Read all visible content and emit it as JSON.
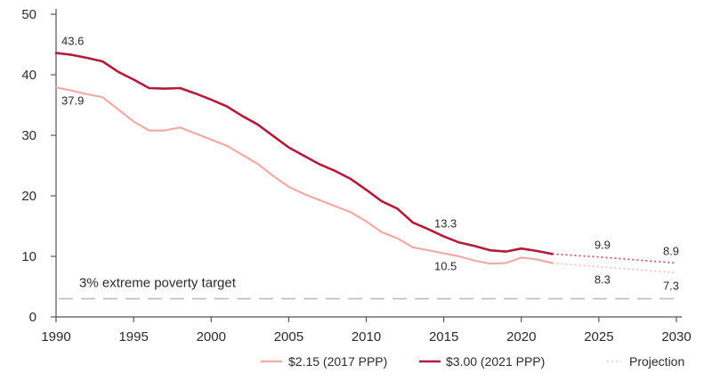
{
  "chart_data": {
    "type": "line",
    "x_ticks": [
      1990,
      1995,
      2000,
      2005,
      2010,
      2015,
      2020,
      2025,
      2030
    ],
    "y_ticks": [
      0,
      10,
      20,
      30,
      40,
      50
    ],
    "xlim": [
      1990,
      2030
    ],
    "ylim": [
      0,
      50
    ],
    "grid": false,
    "legend_position": "bottom-right",
    "colors": {
      "series_215": "#f3aaa5",
      "series_300": "#b31b3a",
      "projection": "#d8d8d8",
      "target": "#bdbdbd",
      "axis": "#555555"
    },
    "series": [
      {
        "name": "$2.15 (2017 PPP)",
        "x": [
          1990,
          1991,
          1992,
          1993,
          1994,
          1995,
          1996,
          1997,
          1998,
          1999,
          2000,
          2001,
          2002,
          2003,
          2004,
          2005,
          2006,
          2007,
          2008,
          2009,
          2010,
          2011,
          2012,
          2013,
          2014,
          2015,
          2016,
          2017,
          2018,
          2019,
          2020,
          2021,
          2022
        ],
        "values": [
          37.9,
          37.4,
          36.8,
          36.3,
          34.3,
          32.3,
          30.8,
          30.8,
          31.3,
          30.3,
          29.3,
          28.3,
          26.8,
          25.3,
          23.3,
          21.5,
          20.3,
          19.3,
          18.3,
          17.3,
          15.8,
          14.0,
          13.0,
          11.5,
          11.0,
          10.5,
          10.0,
          9.3,
          8.8,
          8.9,
          9.8,
          9.5,
          8.9
        ],
        "projection": {
          "x": [
            2022,
            2025,
            2030
          ],
          "values": [
            8.9,
            8.3,
            7.3
          ]
        }
      },
      {
        "name": "$3.00 (2021 PPP)",
        "x": [
          1990,
          1991,
          1992,
          1993,
          1994,
          1995,
          1996,
          1997,
          1998,
          1999,
          2000,
          2001,
          2002,
          2003,
          2004,
          2005,
          2006,
          2007,
          2008,
          2009,
          2010,
          2011,
          2012,
          2013,
          2014,
          2015,
          2016,
          2017,
          2018,
          2019,
          2020,
          2021,
          2022
        ],
        "values": [
          43.6,
          43.3,
          42.8,
          42.2,
          40.5,
          39.2,
          37.8,
          37.7,
          37.8,
          36.9,
          35.9,
          34.8,
          33.2,
          31.8,
          29.9,
          28.0,
          26.6,
          25.2,
          24.1,
          22.8,
          21.0,
          19.1,
          17.9,
          15.6,
          14.5,
          13.3,
          12.3,
          11.7,
          11.0,
          10.8,
          11.3,
          10.9,
          10.4
        ],
        "projection": {
          "x": [
            2022,
            2025,
            2030
          ],
          "values": [
            10.4,
            9.9,
            8.9
          ]
        }
      }
    ],
    "target": {
      "value": 3,
      "label": "3% extreme poverty target"
    },
    "data_labels": [
      {
        "text": "43.6",
        "x": 1990,
        "y": 43.6,
        "series": 1
      },
      {
        "text": "37.9",
        "x": 1990,
        "y": 37.9,
        "series": 0
      },
      {
        "text": "13.3",
        "x": 2015,
        "y": 13.3,
        "series": 1
      },
      {
        "text": "10.5",
        "x": 2015,
        "y": 10.5,
        "series": 0
      },
      {
        "text": "9.9",
        "x": 2025,
        "y": 9.9,
        "series": 1
      },
      {
        "text": "8.3",
        "x": 2025,
        "y": 8.3,
        "series": 0
      },
      {
        "text": "8.9",
        "x": 2030,
        "y": 8.9,
        "series": 1
      },
      {
        "text": "7.3",
        "x": 2030,
        "y": 7.3,
        "series": 0
      }
    ],
    "legend": [
      {
        "label": "$2.15 (2017 PPP)",
        "style": "solid-light"
      },
      {
        "label": "$3.00 (2021 PPP)",
        "style": "solid-dark"
      },
      {
        "label": "Projection",
        "style": "dotted"
      }
    ]
  }
}
